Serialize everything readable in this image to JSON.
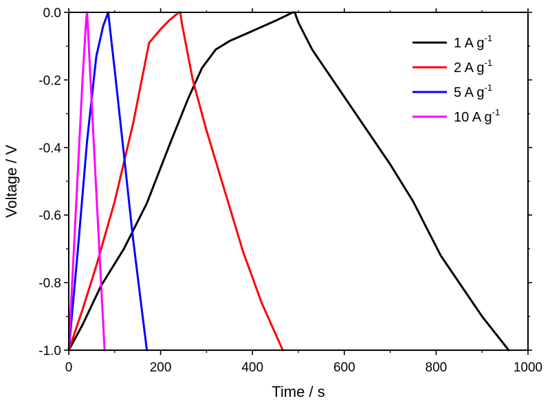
{
  "chart_data": {
    "type": "line",
    "title": "",
    "xlabel": "Time / s",
    "ylabel": "Voltage / V",
    "xlim": [
      0,
      1000
    ],
    "ylim": [
      -1.0,
      0.0
    ],
    "x_ticks": [
      0,
      200,
      400,
      600,
      800,
      1000
    ],
    "x_tick_labels": [
      "0",
      "200",
      "400",
      "600",
      "800",
      "1000"
    ],
    "y_ticks": [
      0.0,
      -0.2,
      -0.4,
      -0.6,
      -0.8,
      -1.0
    ],
    "y_tick_labels": [
      "0.0",
      "-0.2",
      "-0.4",
      "-0.6",
      "-0.8",
      "-1.0"
    ],
    "grid": false,
    "legend_position": "top-right",
    "series": [
      {
        "name": "1 A g-1",
        "legend_main": "1   A g",
        "legend_sup": "-1",
        "color": "#000000",
        "x": [
          0,
          30,
          70,
          120,
          170,
          220,
          260,
          290,
          320,
          350,
          400,
          450,
          488,
          492,
          500,
          530,
          580,
          640,
          700,
          750,
          780,
          810,
          850,
          900,
          958
        ],
        "y": [
          -1.0,
          -0.925,
          -0.81,
          -0.7,
          -0.565,
          -0.39,
          -0.255,
          -0.165,
          -0.11,
          -0.085,
          -0.055,
          -0.025,
          0.0,
          0.0,
          -0.03,
          -0.11,
          -0.21,
          -0.33,
          -0.45,
          -0.56,
          -0.64,
          -0.72,
          -0.8,
          -0.9,
          -1.0
        ]
      },
      {
        "name": "2 A g-1",
        "legend_main": "2   A g",
        "legend_sup": "-1",
        "color": "#ff0000",
        "x": [
          0,
          30,
          60,
          100,
          140,
          175,
          200,
          220,
          240,
          243,
          246,
          270,
          300,
          340,
          380,
          420,
          466
        ],
        "y": [
          -1.0,
          -0.88,
          -0.75,
          -0.56,
          -0.33,
          -0.09,
          -0.05,
          -0.022,
          0.0,
          0.0,
          -0.03,
          -0.2,
          -0.35,
          -0.53,
          -0.71,
          -0.86,
          -1.0
        ]
      },
      {
        "name": "5 A g-1",
        "legend_main": "5   A g",
        "legend_sup": "-1",
        "color": "#0000ff",
        "x": [
          0,
          20,
          40,
          60,
          75,
          86,
          90,
          100,
          120,
          140,
          160,
          170
        ],
        "y": [
          -1.0,
          -0.7,
          -0.38,
          -0.13,
          -0.04,
          0.0,
          -0.05,
          -0.17,
          -0.42,
          -0.67,
          -0.89,
          -1.0
        ]
      },
      {
        "name": "10 A g-1",
        "legend_main": "10 A g",
        "legend_sup": "-1",
        "color": "#ff00ff",
        "x": [
          0,
          15,
          30,
          38,
          40,
          50,
          65,
          78
        ],
        "y": [
          -1.0,
          -0.6,
          -0.2,
          -0.02,
          0.0,
          -0.27,
          -0.66,
          -1.0
        ]
      }
    ]
  }
}
